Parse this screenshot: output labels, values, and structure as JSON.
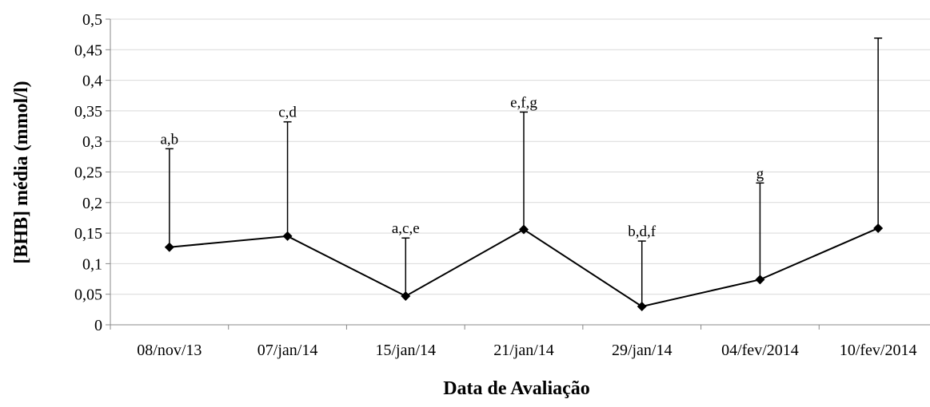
{
  "chart_data": {
    "type": "line",
    "title": "",
    "xlabel": "Data de Avaliação",
    "ylabel": "[BHB] média (mmol/l)",
    "ylim": [
      0,
      0.5
    ],
    "yticks": [
      "0",
      "0,05",
      "0,1",
      "0,15",
      "0,2",
      "0,25",
      "0,3",
      "0,35",
      "0,4",
      "0,45",
      "0,5"
    ],
    "grid": true,
    "legend": "none",
    "categories": [
      "08/nov/13",
      "07/jan/14",
      "15/jan/14",
      "21/jan/14",
      "29/jan/14",
      "04/fev/2014",
      "10/fev/2014"
    ],
    "series": [
      {
        "values": [
          0.127,
          0.145,
          0.047,
          0.156,
          0.03,
          0.074,
          0.158
        ],
        "error_upper": [
          0.288,
          0.332,
          0.142,
          0.348,
          0.137,
          0.232,
          0.469
        ],
        "annotations": [
          "a,b",
          "c,d",
          "a,c,e",
          "e,f,g",
          "b,d,f",
          "g",
          ""
        ],
        "color": "#000000",
        "marker": "diamond"
      }
    ]
  }
}
